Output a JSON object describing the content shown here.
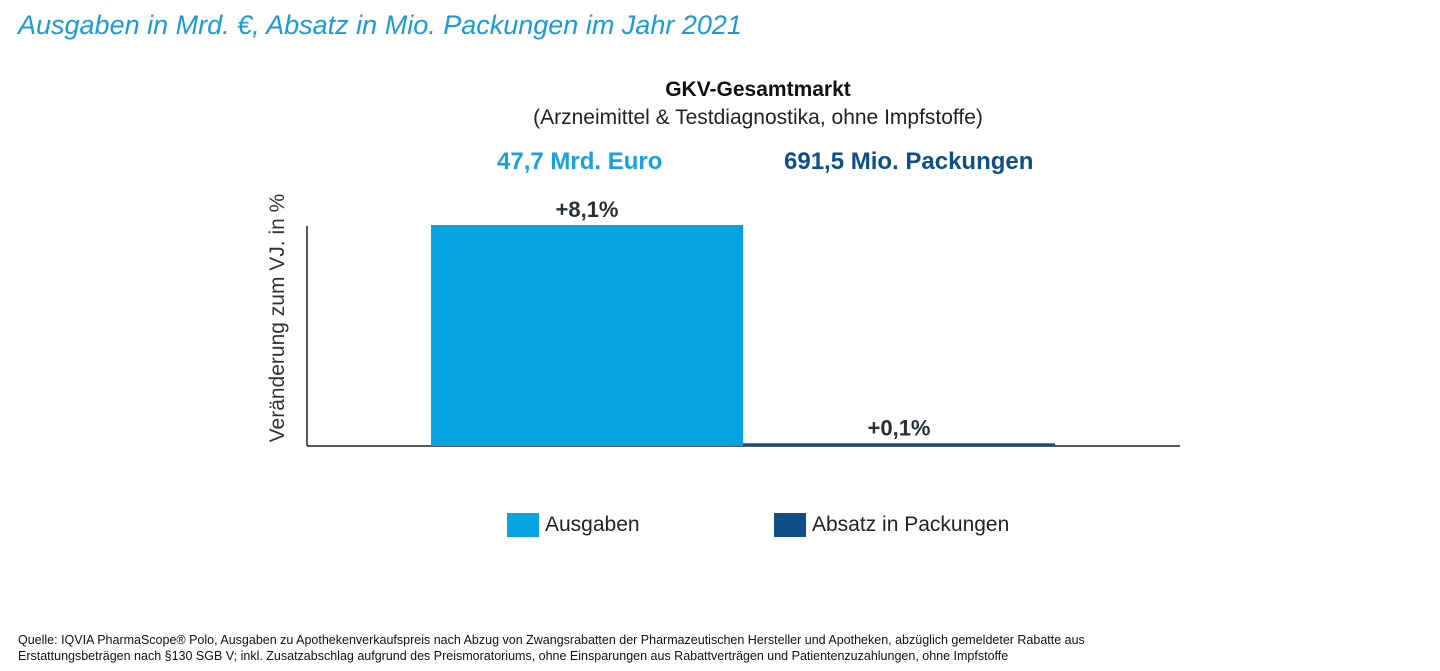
{
  "page_title": "Ausgaben in Mrd. €, Absatz in Mio. Packungen im Jahr 2021",
  "chart_data": {
    "type": "bar",
    "title": "GKV-Gesamtmarkt",
    "subtitle": "(Arzneimittel & Testdiagnostika, ohne Impfstoffe)",
    "ylabel": "Veränderung zum VJ. in %",
    "xlabel": "",
    "ylim": [
      0,
      8.1
    ],
    "grid": false,
    "legend_position": "bottom",
    "series": [
      {
        "name": "Ausgaben",
        "value": 8.1,
        "data_label": "+8,1%",
        "total_label": "47,7 Mrd. Euro",
        "color": "#06a3e0"
      },
      {
        "name": "Absatz in Packungen",
        "value": 0.1,
        "data_label": "+0,1%",
        "total_label": "691,5 Mio. Packungen",
        "color": "#0d4f86"
      }
    ]
  },
  "footnote": {
    "line1": "Quelle: IQVIA PharmaScope® Polo, Ausgaben zu Apothekenverkaufspreis nach Abzug von Zwangsrabatten der Pharmazeutischen Hersteller und Apotheken, abzüglich gemeldeter Rabatte aus",
    "line2": "Erstattungsbeträgen nach §130 SGB V; inkl. Zusatzabschlag aufgrund des Preismoratoriums, ohne Einsparungen aus Rabattverträgen und Patientenzuzahlungen, ohne Impfstoffe"
  }
}
